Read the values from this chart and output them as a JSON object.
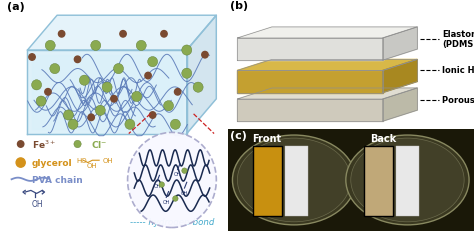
{
  "panel_a_label": "(a)",
  "panel_b_label": "(b)",
  "panel_c_label": "(c)",
  "background_color": "#FFFFFF",
  "box_bg": "#C8E8F5",
  "box_edge": "#90C0D8",
  "chain_color": "#5A7AB8",
  "crosslink_color": "#8AAA50",
  "fe_color": "#7A4A30",
  "fe_label_color": "#7A4A30",
  "cl_color": "#8AAA50",
  "glycerol_color": "#D4921A",
  "pva_color": "#7A8EC8",
  "zoom_circle_edge": "#AAAACC",
  "red_line_color": "#CC2222",
  "hbond_color": "#44AACC",
  "layer_top_color": "#E8E8E4",
  "layer_mid_color": "#C8A840",
  "layer_bot_color": "#D8D0C0",
  "layer_top_face": "#F5F5F3",
  "layer_right_face": "#C8C8C4",
  "petri_bg": "#1A1808",
  "petri_dish_color": "#555540",
  "petri_edge_color": "#888870",
  "golden_strip": "#C89010",
  "tan_strip": "#C0A878",
  "white_strip": "#E8E8E8",
  "panel_label_fontsize": 8,
  "layer_fontsize": 6.0
}
